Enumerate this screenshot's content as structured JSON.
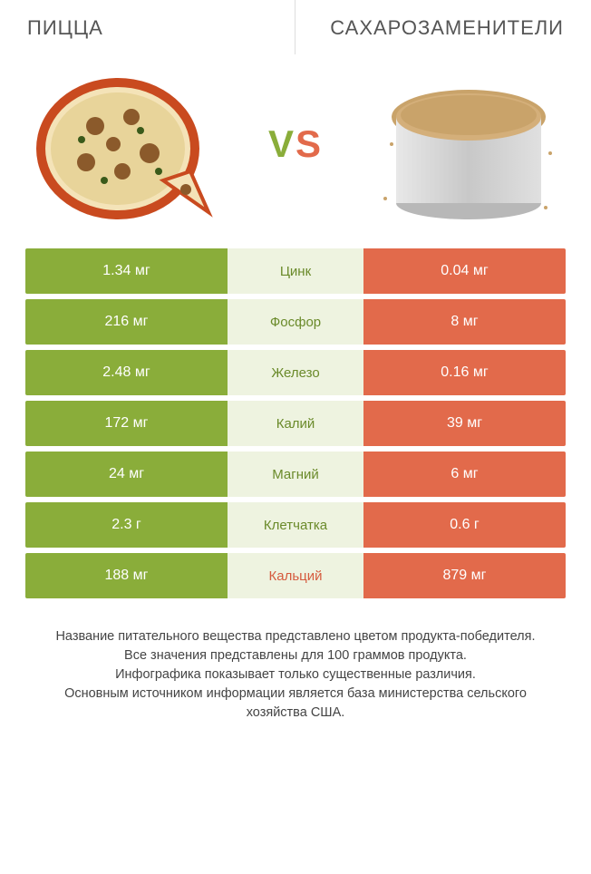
{
  "header": {
    "left_title": "ПИЦЦА",
    "right_title": "САХАРОЗАМЕНИТЕЛИ",
    "vs_v": "V",
    "vs_s": "S"
  },
  "colors": {
    "left": "#8aad3a",
    "right": "#e26a4b",
    "mid_bg": "#eef3e0",
    "mid_green": "#6a8a2a",
    "mid_orange": "#d55b3e"
  },
  "rows": [
    {
      "left": "1.34 мг",
      "label": "Цинк",
      "right": "0.04 мг",
      "winner": "green"
    },
    {
      "left": "216 мг",
      "label": "Фосфор",
      "right": "8 мг",
      "winner": "green"
    },
    {
      "left": "2.48 мг",
      "label": "Железо",
      "right": "0.16 мг",
      "winner": "green"
    },
    {
      "left": "172 мг",
      "label": "Калий",
      "right": "39 мг",
      "winner": "green"
    },
    {
      "left": "24 мг",
      "label": "Магний",
      "right": "6 мг",
      "winner": "green"
    },
    {
      "left": "2.3 г",
      "label": "Клетчатка",
      "right": "0.6 г",
      "winner": "green"
    },
    {
      "left": "188 мг",
      "label": "Кальций",
      "right": "879 мг",
      "winner": "orange"
    }
  ],
  "footer": {
    "line1": "Название питательного вещества представлено цветом продукта-победителя.",
    "line2": "Все значения представлены для 100 граммов продукта.",
    "line3": "Инфографика показывает только существенные различия.",
    "line4": "Основным источником информации является база министерства сельского хозяйства США."
  }
}
